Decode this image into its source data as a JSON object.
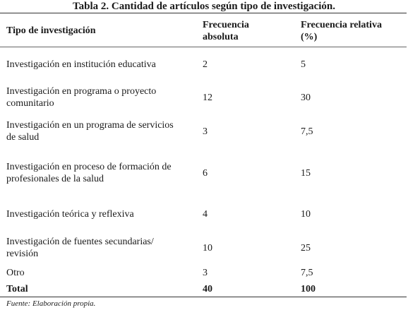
{
  "title": "Tabla 2. Cantidad de artículos según tipo de investigación.",
  "headers": {
    "col1": "Tipo de investigación",
    "col2": "Frecuencia absoluta",
    "col3": "Frecuencia relativa (%)"
  },
  "rows": [
    {
      "tipo": "Investigación en institución educativa",
      "absoluta": "2",
      "relativa": "5"
    },
    {
      "tipo": "Investigación en programa o proyecto comunitario",
      "absoluta": "12",
      "relativa": "30"
    },
    {
      "tipo": "Investigación en un programa de servicios de salud",
      "absoluta": "3",
      "relativa": "7,5"
    },
    {
      "tipo": "Investigación en proceso de formación de profesionales de la salud",
      "absoluta": "6",
      "relativa": "15"
    },
    {
      "tipo": "Investigación teórica y reflexiva",
      "absoluta": "4",
      "relativa": "10"
    },
    {
      "tipo": "Investigación de fuentes secundarias/ revisión",
      "absoluta": "10",
      "relativa": "25"
    },
    {
      "tipo": "Otro",
      "absoluta": "3",
      "relativa": "7,5"
    }
  ],
  "total": {
    "label": "Total",
    "absoluta": "40",
    "relativa": "100"
  },
  "source": "Fuente: Elaboración propia."
}
